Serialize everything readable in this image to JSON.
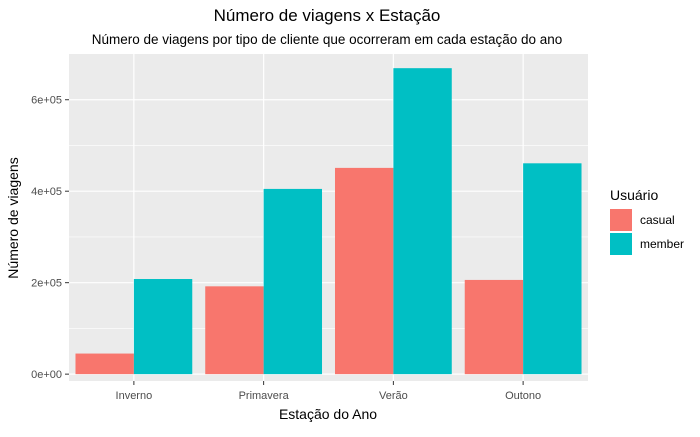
{
  "chart_data": {
    "type": "bar",
    "title": "Número de viagens x Estação",
    "subtitle": "Número de viagens por tipo de cliente que ocorreram em cada estação do ano",
    "xlabel": "Estação do Ano",
    "ylabel": "Número de viagens",
    "categories": [
      "Inverno",
      "Primavera",
      "Verão",
      "Outono"
    ],
    "series": [
      {
        "name": "casual",
        "color": "#F8766D",
        "values": [
          45000,
          192000,
          451000,
          206000
        ]
      },
      {
        "name": "member",
        "color": "#00BFC4",
        "values": [
          208000,
          405000,
          669000,
          461000
        ]
      }
    ],
    "ylim": [
      -15000,
      700000
    ],
    "yticks": [
      0,
      200000,
      400000,
      600000
    ],
    "ytick_labels": [
      "0e+00",
      "2e+05",
      "4e+05",
      "6e+05"
    ],
    "grid": true,
    "legend": {
      "title": "Usuário",
      "position": "right"
    },
    "panel_background": "#EBEBEB",
    "grid_color": "#FFFFFF"
  }
}
